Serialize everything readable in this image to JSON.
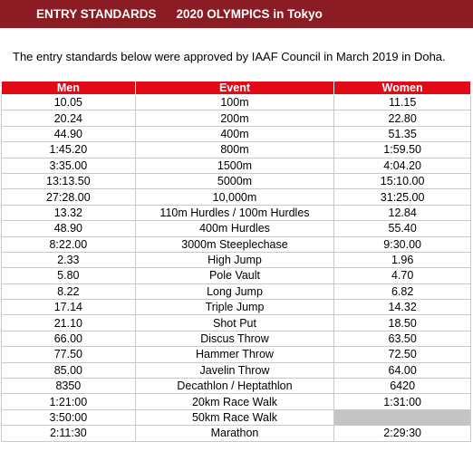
{
  "banner": {
    "left": "ENTRY STANDARDS",
    "right": "2020 OLYMPICS in Tokyo"
  },
  "intro": "The entry standards below were approved by IAAF Council in March 2019 in Doha.",
  "table": {
    "headers": {
      "men": "Men",
      "event": "Event",
      "women": "Women"
    },
    "rows": [
      {
        "men": "10.05",
        "event": "100m",
        "women": "11.15"
      },
      {
        "men": "20.24",
        "event": "200m",
        "women": "22.80"
      },
      {
        "men": "44.90",
        "event": "400m",
        "women": "51.35"
      },
      {
        "men": "1:45.20",
        "event": "800m",
        "women": "1:59.50"
      },
      {
        "men": "3:35.00",
        "event": "1500m",
        "women": "4:04.20"
      },
      {
        "men": "13:13.50",
        "event": "5000m",
        "women": "15:10.00"
      },
      {
        "men": "27:28.00",
        "event": "10,000m",
        "women": "31:25.00"
      },
      {
        "men": "13.32",
        "event": "110m Hurdles / 100m Hurdles",
        "women": "12.84"
      },
      {
        "men": "48.90",
        "event": "400m Hurdles",
        "women": "55.40"
      },
      {
        "men": "8:22.00",
        "event": "3000m Steeplechase",
        "women": "9:30.00"
      },
      {
        "men": "2.33",
        "event": "High Jump",
        "women": "1.96"
      },
      {
        "men": "5.80",
        "event": "Pole Vault",
        "women": "4.70"
      },
      {
        "men": "8.22",
        "event": "Long Jump",
        "women": "6.82"
      },
      {
        "men": "17.14",
        "event": "Triple Jump",
        "women": "14.32"
      },
      {
        "men": "21.10",
        "event": "Shot Put",
        "women": "18.50"
      },
      {
        "men": "66.00",
        "event": "Discus Throw",
        "women": "63.50"
      },
      {
        "men": "77.50",
        "event": "Hammer Throw",
        "women": "72.50"
      },
      {
        "men": "85.00",
        "event": "Javelin Throw",
        "women": "64.00"
      },
      {
        "men": "8350",
        "event": "Decathlon / Heptathlon",
        "women": "6420"
      },
      {
        "men": "1:21:00",
        "event": "20km Race Walk",
        "women": "1:31:00"
      },
      {
        "men": "3:50:00",
        "event": "50km Race Walk",
        "women": ""
      },
      {
        "men": "2:11:30",
        "event": "Marathon",
        "women": "2:29:30"
      }
    ]
  },
  "colors": {
    "banner": "#8b1c23",
    "header": "#e30a17",
    "empty_cell": "#c4c4c4"
  }
}
